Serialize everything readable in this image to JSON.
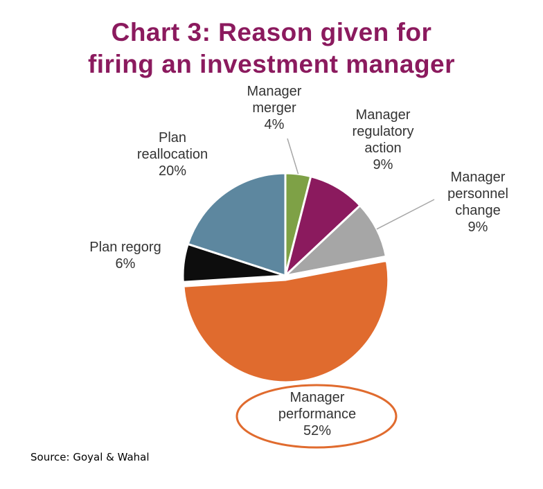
{
  "page": {
    "title_line1": "Chart 3: Reason given for",
    "title_line2": "firing an investment manager",
    "source": "Source: Goyal & Wahal"
  },
  "chart_data": {
    "type": "pie",
    "title": "Chart 3: Reason given for firing an investment manager",
    "slices": [
      {
        "name": "Manager merger",
        "label_lines": [
          "Manager",
          "merger"
        ],
        "value": 4,
        "value_label": "4%",
        "color": "#7ea146"
      },
      {
        "name": "Manager regulatory action",
        "label_lines": [
          "Manager",
          "regulatory",
          "action"
        ],
        "value": 9,
        "value_label": "9%",
        "color": "#8b1a5e"
      },
      {
        "name": "Manager personnel change",
        "label_lines": [
          "Manager",
          "personnel",
          "change"
        ],
        "value": 9,
        "value_label": "9%",
        "color": "#a6a6a6"
      },
      {
        "name": "Manager performance",
        "label_lines": [
          "Manager",
          "performance"
        ],
        "value": 52,
        "value_label": "52%",
        "color": "#e06b2e",
        "highlighted": true
      },
      {
        "name": "Plan regorg",
        "label_lines": [
          "Plan regorg"
        ],
        "value": 6,
        "value_label": "6%",
        "color": "#0d0d0d"
      },
      {
        "name": "Plan reallocation",
        "label_lines": [
          "Plan",
          "reallocation"
        ],
        "value": 20,
        "value_label": "20%",
        "color": "#5d879f"
      }
    ],
    "start": "12 o'clock",
    "direction": "clockwise",
    "highlight_color": "#e06b2e"
  }
}
